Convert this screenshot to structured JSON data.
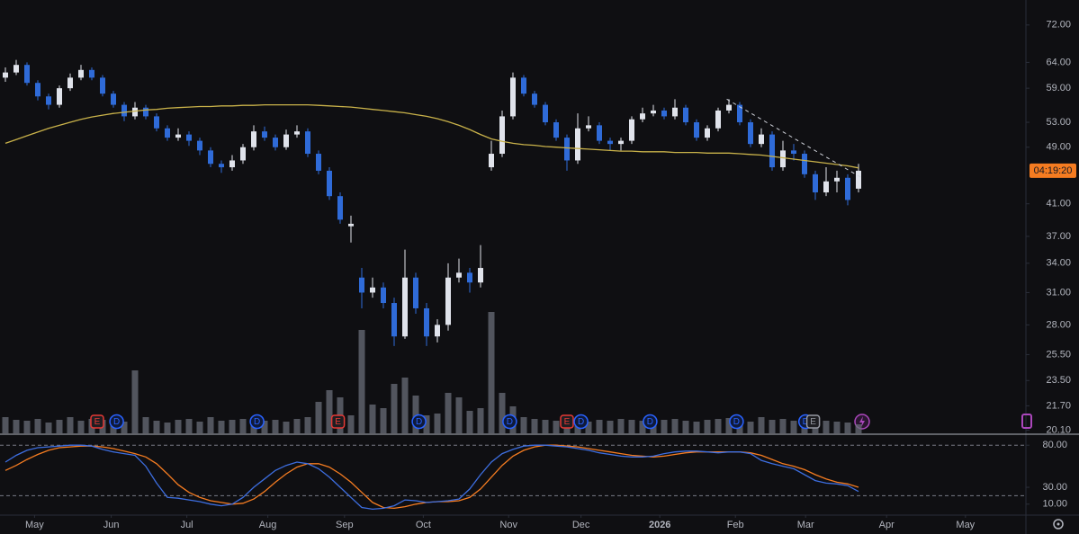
{
  "chart_data": {
    "type": "candlestick",
    "scale": "log",
    "xlim": [
      -0.5,
      94.5
    ],
    "ylim": [
      19.9,
      77.9
    ],
    "yticks": [
      {
        "value": 72,
        "label": "72.00"
      },
      {
        "value": 64,
        "label": "64.00"
      },
      {
        "value": 59,
        "label": "59.00"
      },
      {
        "value": 53,
        "label": "53.00"
      },
      {
        "value": 49,
        "label": "49.00"
      },
      {
        "value": 41,
        "label": "41.00"
      },
      {
        "value": 37,
        "label": "37.00"
      },
      {
        "value": 34,
        "label": "34.00"
      },
      {
        "value": 31,
        "label": "31.00"
      },
      {
        "value": 28,
        "label": "28.00"
      },
      {
        "value": 25.5,
        "label": "25.50"
      },
      {
        "value": 23.5,
        "label": "23.50"
      },
      {
        "value": 21.7,
        "label": "21.70"
      },
      {
        "value": 20.1,
        "label": "20.10"
      }
    ],
    "xticks": [
      {
        "value": 2.7,
        "label": "May"
      },
      {
        "value": 9.8,
        "label": "Jun"
      },
      {
        "value": 16.8,
        "label": "Jul"
      },
      {
        "value": 24.3,
        "label": "Aug"
      },
      {
        "value": 31.4,
        "label": "Sep"
      },
      {
        "value": 38.7,
        "label": "Oct"
      },
      {
        "value": 46.6,
        "label": "Nov"
      },
      {
        "value": 53.3,
        "label": "Dec"
      },
      {
        "value": 60.6,
        "label": "2026"
      },
      {
        "value": 67.6,
        "label": "Feb"
      },
      {
        "value": 74.1,
        "label": "Mar"
      },
      {
        "value": 81.6,
        "label": "Apr"
      },
      {
        "value": 88.9,
        "label": "May"
      }
    ],
    "up_color": "#e0e3eb",
    "down_color": "#2f6bd8",
    "ohlc": [
      [
        61,
        63,
        60.2,
        62
      ],
      [
        62,
        64.5,
        61.5,
        63.5
      ],
      [
        63.5,
        64,
        59.5,
        60
      ],
      [
        60,
        60.5,
        56.8,
        57.5
      ],
      [
        57.5,
        58,
        55.2,
        56
      ],
      [
        56,
        59.5,
        55.5,
        59
      ],
      [
        59,
        61.8,
        58.5,
        61
      ],
      [
        61,
        63.5,
        60.5,
        62.5
      ],
      [
        62.5,
        63,
        60.5,
        61
      ],
      [
        61,
        61.5,
        57.5,
        58
      ],
      [
        58,
        58.5,
        55.5,
        56
      ],
      [
        56,
        56.5,
        53.2,
        54
      ],
      [
        54,
        56.5,
        53.5,
        55.5
      ],
      [
        55.5,
        56,
        53.5,
        54
      ],
      [
        54,
        54.5,
        51.5,
        52
      ],
      [
        52,
        52.5,
        50,
        50.5
      ],
      [
        50.5,
        52,
        50,
        51
      ],
      [
        51,
        51.5,
        49.2,
        50
      ],
      [
        50,
        50.5,
        47.8,
        48.5
      ],
      [
        48.5,
        49,
        46,
        46.5
      ],
      [
        46.5,
        47,
        45.2,
        46
      ],
      [
        46,
        47.8,
        45.5,
        47
      ],
      [
        47,
        49.5,
        46.5,
        49
      ],
      [
        49,
        52.5,
        48.5,
        51.5
      ],
      [
        51.5,
        52.3,
        50,
        50.5
      ],
      [
        50.5,
        51,
        48.5,
        49
      ],
      [
        49,
        51.8,
        48.6,
        51
      ],
      [
        51,
        52.5,
        50.5,
        51.5
      ],
      [
        51.5,
        52,
        47.5,
        48
      ],
      [
        48,
        48.5,
        45,
        45.5
      ],
      [
        45.5,
        46,
        41.5,
        42
      ],
      [
        42,
        42.5,
        38.5,
        39
      ],
      [
        38.2,
        39.5,
        36.3,
        38.5
      ],
      [
        32.5,
        33.5,
        29.5,
        31
      ],
      [
        31,
        32.5,
        30.5,
        31.5
      ],
      [
        31.5,
        32,
        29.5,
        30
      ],
      [
        30,
        30.5,
        26.2,
        27
      ],
      [
        27,
        35.5,
        26.8,
        32.5
      ],
      [
        32.5,
        33,
        29,
        29.5
      ],
      [
        29.5,
        30,
        26.2,
        27
      ],
      [
        27,
        28.5,
        26.5,
        28
      ],
      [
        28,
        34,
        27.5,
        32.5
      ],
      [
        32.5,
        34.5,
        32,
        33
      ],
      [
        33,
        33.5,
        31,
        32
      ],
      [
        32,
        36,
        31.5,
        33.5
      ],
      [
        46,
        50,
        45.5,
        48
      ],
      [
        48,
        55,
        47.5,
        54
      ],
      [
        54,
        62,
        53.5,
        61
      ],
      [
        61,
        61.5,
        57.5,
        58
      ],
      [
        58,
        58.5,
        55.5,
        56
      ],
      [
        56,
        56.5,
        52.5,
        53
      ],
      [
        53,
        53.5,
        50,
        50.5
      ],
      [
        50.5,
        51,
        45.5,
        47
      ],
      [
        47,
        54.5,
        46.5,
        52
      ],
      [
        52,
        54,
        51.5,
        52.5
      ],
      [
        52.5,
        53,
        49.5,
        50
      ],
      [
        50,
        50.5,
        48.5,
        49.5
      ],
      [
        49.5,
        50.5,
        48.5,
        50
      ],
      [
        50,
        54,
        49.5,
        53.5
      ],
      [
        53.5,
        55.5,
        53,
        54.5
      ],
      [
        54.5,
        56,
        54,
        55
      ],
      [
        55,
        55.5,
        53.5,
        54
      ],
      [
        54,
        57,
        53.5,
        55.5
      ],
      [
        55.5,
        56,
        52.5,
        53
      ],
      [
        53,
        53.5,
        50,
        50.5
      ],
      [
        50.5,
        52.5,
        50,
        52
      ],
      [
        52,
        55.5,
        51.5,
        55
      ],
      [
        55,
        57,
        54.5,
        56
      ],
      [
        56,
        56.5,
        52.5,
        53
      ],
      [
        53,
        53.5,
        49,
        49.5
      ],
      [
        49.5,
        52,
        49,
        51
      ],
      [
        51,
        51.5,
        45.5,
        46
      ],
      [
        46,
        50,
        45.5,
        48.5
      ],
      [
        48.5,
        49.5,
        47,
        48
      ],
      [
        48,
        48.5,
        44.5,
        45
      ],
      [
        45,
        45.5,
        41.5,
        42.5
      ],
      [
        42.5,
        46,
        42,
        44
      ],
      [
        44,
        45.5,
        42.5,
        44.5
      ],
      [
        44.5,
        45,
        40.8,
        41.5
      ],
      [
        43,
        46.5,
        42.5,
        45.5
      ]
    ],
    "volume_color": "#6a6d78",
    "volume": [
      18,
      15,
      14,
      16,
      12,
      15,
      18,
      14,
      16,
      15,
      14,
      13,
      70,
      18,
      14,
      12,
      15,
      16,
      13,
      18,
      14,
      15,
      16,
      17,
      14,
      15,
      13,
      16,
      18,
      35,
      48,
      40,
      20,
      115,
      32,
      28,
      55,
      62,
      42,
      20,
      22,
      45,
      40,
      25,
      28,
      135,
      45,
      30,
      18,
      16,
      15,
      14,
      17,
      16,
      13,
      15,
      14,
      16,
      15,
      14,
      13,
      15,
      16,
      14,
      13,
      15,
      16,
      17,
      14,
      13,
      18,
      15,
      16,
      14,
      13,
      15,
      14,
      13,
      12,
      10
    ],
    "moving_average": {
      "color": "#c9b24a",
      "values": [
        49.6,
        50.2,
        50.8,
        51.4,
        52,
        52.5,
        53,
        53.5,
        53.9,
        54.2,
        54.5,
        54.7,
        54.9,
        55.1,
        55.2,
        55.4,
        55.5,
        55.6,
        55.7,
        55.7,
        55.8,
        55.8,
        55.9,
        55.9,
        56,
        56,
        56,
        56,
        56,
        55.9,
        55.8,
        55.7,
        55.6,
        55.4,
        55.2,
        55,
        54.8,
        54.6,
        54.3,
        54,
        53.6,
        53.1,
        52.5,
        51.8,
        51,
        50.3,
        49.9,
        49.6,
        49.4,
        49.3,
        49.1,
        49,
        48.9,
        48.8,
        48.7,
        48.6,
        48.5,
        48.4,
        48.4,
        48.3,
        48.3,
        48.3,
        48.2,
        48.2,
        48.2,
        48.1,
        48.1,
        48.1,
        48,
        47.9,
        47.8,
        47.6,
        47.4,
        47.2,
        47,
        46.8,
        46.6,
        46.4,
        46.2,
        45.9
      ]
    },
    "trendline": {
      "x": [
        66.8,
        79.3
      ],
      "y": [
        57,
        44.5
      ],
      "color": "#d1d4dc"
    },
    "countdown_label": "04:19:20",
    "countdown_color": "#f57c21",
    "events": [
      {
        "x": 8.5,
        "label": "E",
        "color": "#e53935"
      },
      {
        "x": 10.3,
        "label": "D",
        "color": "#2962ff"
      },
      {
        "x": 23.3,
        "label": "D",
        "color": "#2962ff"
      },
      {
        "x": 30.8,
        "label": "E",
        "color": "#e53935"
      },
      {
        "x": 38.3,
        "label": "D",
        "color": "#2962ff"
      },
      {
        "x": 46.7,
        "label": "D",
        "color": "#2962ff"
      },
      {
        "x": 52,
        "label": "E",
        "color": "#e53935"
      },
      {
        "x": 53.3,
        "label": "D",
        "color": "#2962ff"
      },
      {
        "x": 59.7,
        "label": "D",
        "color": "#2962ff"
      },
      {
        "x": 67.7,
        "label": "D",
        "color": "#2962ff"
      },
      {
        "x": 74.1,
        "label": "D",
        "color": "#2962ff"
      },
      {
        "x": 74.8,
        "label": "E",
        "color": "#9598a1"
      }
    ],
    "oscillator": {
      "ylim": [
        -2,
        92
      ],
      "yticks": [
        {
          "value": 80,
          "label": "80.00"
        },
        {
          "value": 30,
          "label": "30.00"
        },
        {
          "value": 10,
          "label": "10.00"
        }
      ],
      "bands": [
        80,
        20
      ],
      "series": [
        {
          "color": "#3d6ee0",
          "values": [
            60,
            68,
            74,
            77,
            78,
            79,
            80,
            80,
            79,
            75,
            72,
            70,
            68,
            55,
            35,
            18,
            17,
            15,
            13,
            10,
            8,
            10,
            18,
            30,
            40,
            50,
            56,
            60,
            58,
            52,
            42,
            30,
            18,
            6,
            4,
            5,
            8,
            15,
            14,
            12,
            13,
            14,
            16,
            28,
            45,
            60,
            70,
            75,
            79,
            80,
            80,
            79,
            78,
            76,
            74,
            71,
            69,
            67,
            66,
            66,
            67,
            70,
            72,
            73,
            73,
            72,
            71,
            72,
            72,
            70,
            62,
            58,
            55,
            52,
            45,
            38,
            35,
            34,
            32,
            25
          ]
        },
        {
          "color": "#f57c21",
          "values": [
            50,
            56,
            63,
            69,
            74,
            77,
            78,
            79,
            79,
            78,
            76,
            73,
            70,
            66,
            58,
            46,
            33,
            24,
            18,
            14,
            12,
            10,
            11,
            16,
            25,
            36,
            46,
            54,
            58,
            58,
            54,
            46,
            36,
            24,
            12,
            6,
            5,
            7,
            10,
            12,
            13,
            13,
            14,
            18,
            28,
            42,
            56,
            67,
            74,
            78,
            80,
            80,
            79,
            78,
            76,
            74,
            72,
            70,
            68,
            67,
            66,
            67,
            69,
            71,
            72,
            72,
            72,
            72,
            72,
            71,
            68,
            63,
            58,
            55,
            51,
            45,
            40,
            36,
            34,
            30
          ]
        }
      ]
    }
  }
}
